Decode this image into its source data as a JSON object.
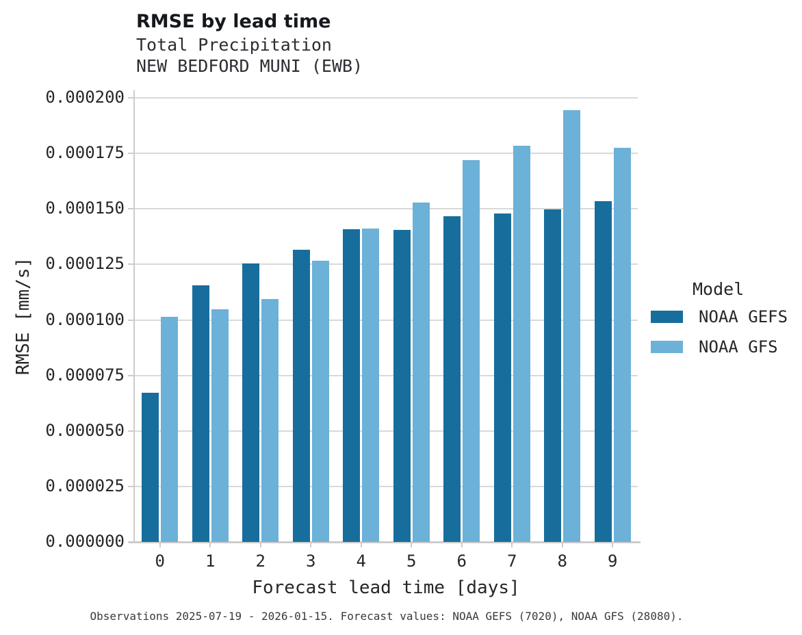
{
  "header": {
    "title": "RMSE by lead time",
    "subtitle_line1": "Total Precipitation",
    "subtitle_line2": "NEW BEDFORD MUNI (EWB)"
  },
  "chart_data": {
    "type": "bar",
    "title": "RMSE by lead time",
    "subtitle": "Total Precipitation / NEW BEDFORD MUNI (EWB)",
    "xlabel": "Forecast lead time [days]",
    "ylabel": "RMSE [mm/s]",
    "categories": [
      "0",
      "1",
      "2",
      "3",
      "4",
      "5",
      "6",
      "7",
      "8",
      "9"
    ],
    "series": [
      {
        "name": "NOAA GEFS",
        "color": "#176e9c",
        "values": [
          6.72e-05,
          0.0001156,
          0.0001253,
          0.0001315,
          0.0001407,
          0.0001406,
          0.0001468,
          0.0001478,
          0.0001497,
          0.0001536
        ]
      },
      {
        "name": "NOAA GFS",
        "color": "#6cb1d8",
        "values": [
          0.0001015,
          0.0001047,
          0.0001094,
          0.0001267,
          0.0001413,
          0.0001528,
          0.000172,
          0.0001785,
          0.0001946,
          0.0001776
        ]
      }
    ],
    "ylim": [
      0,
      0.0002034
    ],
    "yticks": [
      0.0,
      2.5e-05,
      5e-05,
      7.5e-05,
      0.0001,
      0.000125,
      0.00015,
      0.000175,
      0.0002
    ],
    "ytick_decimals": 6,
    "grid": true,
    "legend_title": "Model",
    "legend_position": "right-center"
  },
  "legend": {
    "title": "Model",
    "items": [
      {
        "label": "NOAA GEFS",
        "color": "#176e9c"
      },
      {
        "label": "NOAA GFS",
        "color": "#6cb1d8"
      }
    ]
  },
  "caption": "Observations 2025-07-19 - 2026-01-15. Forecast values: NOAA GEFS (7020), NOAA GFS (28080).",
  "colors": {
    "gefs_bar": "#176e9c",
    "gfs_bar": "#6cb1d8",
    "gridline": "#d9d9d9",
    "spine": "#cccccc",
    "text": "#262626",
    "caption_text": "#3a3a3a",
    "background": "#ffffff"
  }
}
